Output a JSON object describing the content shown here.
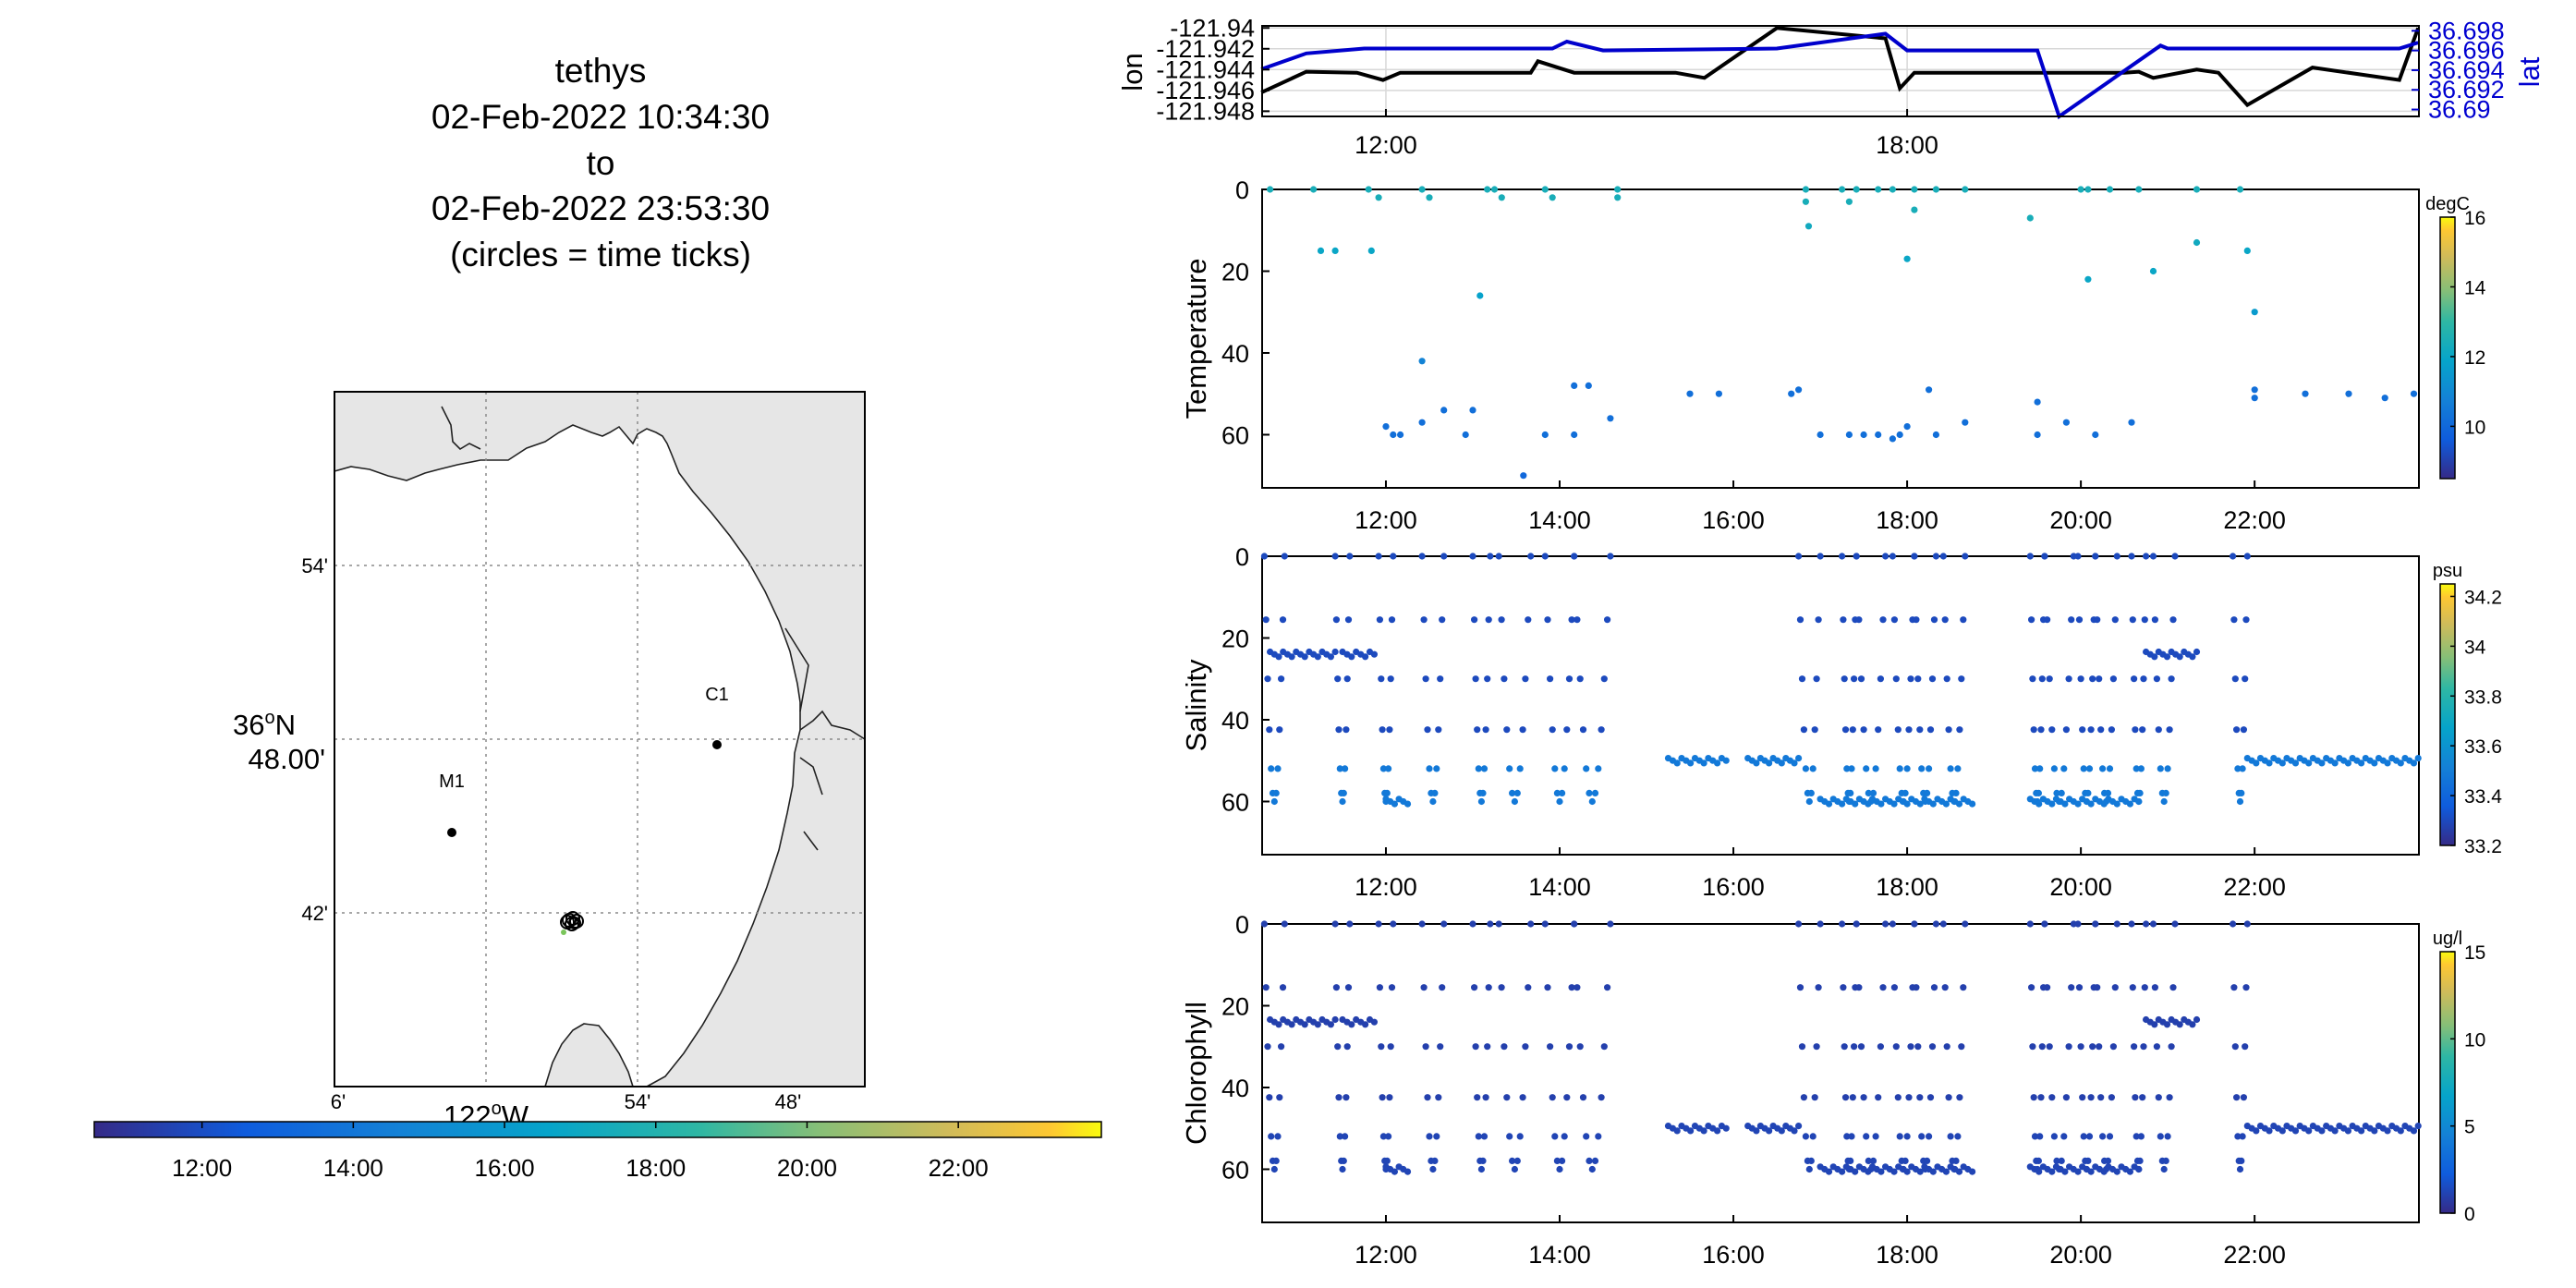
{
  "title": {
    "line1": "tethys",
    "line2": "02-Feb-2022 10:34:30",
    "line3": "to",
    "line4": "02-Feb-2022 23:53:30",
    "line5": "(circles = time ticks)"
  },
  "map": {
    "lat_tick_labels": [
      "54'",
      "36°N 48.00'",
      "42'"
    ],
    "lat_label_main": "36",
    "lat_label_sup": "o",
    "lat_label_suffix": "N",
    "lat_label_minutes": "48.00'",
    "lat_54": "54'",
    "lat_42": "42'",
    "lon_6": "6'",
    "lon_54": "54'",
    "lon_48": "48'",
    "lon_label_main": "122",
    "lon_label_sup": "o",
    "lon_label_suffix": "W",
    "mooring_c1": "C1",
    "mooring_m1": "M1",
    "land_color": "#e6e6e6",
    "ocean_color": "#ffffff"
  },
  "time_colorbar": {
    "ticks": [
      "12:00",
      "14:00",
      "16:00",
      "18:00",
      "20:00",
      "22:00"
    ]
  },
  "chart_data": [
    {
      "type": "line",
      "name": "position",
      "ylabel": "lon",
      "ylabel_right": "lat",
      "x_ticks": [
        "12:00",
        "18:00"
      ],
      "xlim": [
        "10:34:30",
        "23:53:30"
      ],
      "ylim_left": [
        -121.9485,
        -121.9398
      ],
      "ylim_right": [
        36.6893,
        36.6985
      ],
      "yticks_left": [
        "-121.94",
        "-121.942",
        "-121.944",
        "-121.946",
        "-121.948"
      ],
      "yticks_right": [
        "36.698",
        "36.696",
        "36.694",
        "36.692",
        "36.69"
      ],
      "series": [
        {
          "name": "lon",
          "color": "#000000",
          "x": [
            "10:34",
            "11:05",
            "11:40",
            "11:58",
            "12:10",
            "13:40",
            "13:45",
            "14:10",
            "15:20",
            "15:40",
            "16:30",
            "17:45",
            "17:55",
            "18:05",
            "19:30",
            "20:30",
            "20:40",
            "20:50",
            "21:20",
            "21:35",
            "21:55",
            "22:40",
            "23:40",
            "23:53"
          ],
          "y": [
            -121.9462,
            -121.9442,
            -121.9443,
            -121.945,
            -121.9443,
            -121.9443,
            -121.9432,
            -121.9443,
            -121.9443,
            -121.9448,
            -121.94,
            -121.941,
            -121.9458,
            -121.9443,
            -121.9443,
            -121.9443,
            -121.9442,
            -121.9448,
            -121.944,
            -121.9443,
            -121.9474,
            -121.9438,
            -121.945,
            -121.94
          ]
        },
        {
          "name": "lat",
          "color": "#0000cc",
          "x": [
            "10:34",
            "11:05",
            "11:45",
            "13:00",
            "13:55",
            "14:05",
            "14:30",
            "16:30",
            "17:45",
            "18:00",
            "18:40",
            "19:30",
            "19:45",
            "20:55",
            "21:00",
            "21:15",
            "22:45",
            "23:40",
            "23:53"
          ],
          "y": [
            36.6941,
            36.6957,
            36.6962,
            36.6962,
            36.6962,
            36.6969,
            36.696,
            36.6962,
            36.6977,
            36.696,
            36.696,
            36.696,
            36.6893,
            36.6965,
            36.6962,
            36.6962,
            36.6962,
            36.6962,
            36.6968
          ]
        }
      ]
    },
    {
      "type": "scatter",
      "name": "temperature",
      "ylabel": "Temperature",
      "x_ticks": [
        "12:00",
        "14:00",
        "16:00",
        "18:00",
        "20:00",
        "22:00"
      ],
      "ylim": [
        0,
        73
      ],
      "yticks": [
        "0",
        "20",
        "40",
        "60"
      ],
      "y_reversed": true,
      "colorbar": {
        "unit": "degC",
        "range": [
          8.5,
          16
        ],
        "ticks": [
          "16",
          "14",
          "12",
          "10"
        ]
      },
      "points": [
        {
          "x": "10:40",
          "y": 0,
          "v": 12.4
        },
        {
          "x": "11:10",
          "y": 0,
          "v": 12.4
        },
        {
          "x": "11:15",
          "y": 15,
          "v": 12.0
        },
        {
          "x": "11:25",
          "y": 15,
          "v": 12.0
        },
        {
          "x": "11:50",
          "y": 15,
          "v": 12.0
        },
        {
          "x": "11:48",
          "y": 0,
          "v": 12.4
        },
        {
          "x": "11:55",
          "y": 2,
          "v": 12.4
        },
        {
          "x": "12:25",
          "y": 0,
          "v": 12.4
        },
        {
          "x": "12:30",
          "y": 2,
          "v": 12.4
        },
        {
          "x": "13:10",
          "y": 0,
          "v": 12.4
        },
        {
          "x": "13:15",
          "y": 0,
          "v": 12.4
        },
        {
          "x": "13:20",
          "y": 2,
          "v": 12.4
        },
        {
          "x": "13:50",
          "y": 0,
          "v": 12.4
        },
        {
          "x": "13:55",
          "y": 2,
          "v": 12.4
        },
        {
          "x": "14:40",
          "y": 0,
          "v": 12.4
        },
        {
          "x": "14:40",
          "y": 2,
          "v": 12.4
        },
        {
          "x": "13:05",
          "y": 26,
          "v": 11.8
        },
        {
          "x": "12:25",
          "y": 42,
          "v": 10.8
        },
        {
          "x": "12:00",
          "y": 58,
          "v": 10.2
        },
        {
          "x": "12:05",
          "y": 60,
          "v": 10.2
        },
        {
          "x": "12:10",
          "y": 60,
          "v": 10.2
        },
        {
          "x": "12:25",
          "y": 57,
          "v": 10.2
        },
        {
          "x": "12:40",
          "y": 54,
          "v": 10.2
        },
        {
          "x": "13:00",
          "y": 54,
          "v": 10.2
        },
        {
          "x": "12:55",
          "y": 60,
          "v": 10.2
        },
        {
          "x": "13:35",
          "y": 70,
          "v": 10.0
        },
        {
          "x": "13:50",
          "y": 60,
          "v": 10.2
        },
        {
          "x": "14:10",
          "y": 60,
          "v": 10.2
        },
        {
          "x": "14:10",
          "y": 48,
          "v": 10.2
        },
        {
          "x": "14:20",
          "y": 48,
          "v": 10.2
        },
        {
          "x": "14:35",
          "y": 56,
          "v": 10.2
        },
        {
          "x": "15:30",
          "y": 50,
          "v": 10.2
        },
        {
          "x": "15:50",
          "y": 50,
          "v": 10.2
        },
        {
          "x": "16:40",
          "y": 50,
          "v": 10.2
        },
        {
          "x": "16:45",
          "y": 49,
          "v": 10.2
        },
        {
          "x": "16:50",
          "y": 0,
          "v": 12.4
        },
        {
          "x": "16:50",
          "y": 3,
          "v": 12.4
        },
        {
          "x": "16:52",
          "y": 9,
          "v": 12.2
        },
        {
          "x": "17:15",
          "y": 0,
          "v": 12.4
        },
        {
          "x": "17:20",
          "y": 3,
          "v": 12.4
        },
        {
          "x": "17:25",
          "y": 0,
          "v": 12.4
        },
        {
          "x": "17:40",
          "y": 0,
          "v": 12.4
        },
        {
          "x": "17:50",
          "y": 0,
          "v": 12.4
        },
        {
          "x": "18:05",
          "y": 0,
          "v": 12.4
        },
        {
          "x": "18:05",
          "y": 5,
          "v": 12.4
        },
        {
          "x": "18:00",
          "y": 17,
          "v": 12.0
        },
        {
          "x": "18:20",
          "y": 0,
          "v": 12.4
        },
        {
          "x": "18:40",
          "y": 0,
          "v": 12.4
        },
        {
          "x": "17:00",
          "y": 60,
          "v": 10.2
        },
        {
          "x": "17:20",
          "y": 60,
          "v": 10.2
        },
        {
          "x": "17:30",
          "y": 60,
          "v": 10.2
        },
        {
          "x": "17:40",
          "y": 60,
          "v": 10.2
        },
        {
          "x": "17:50",
          "y": 61,
          "v": 10.2
        },
        {
          "x": "17:55",
          "y": 60,
          "v": 10.2
        },
        {
          "x": "18:00",
          "y": 58,
          "v": 10.2
        },
        {
          "x": "18:15",
          "y": 49,
          "v": 10.2
        },
        {
          "x": "18:20",
          "y": 60,
          "v": 10.2
        },
        {
          "x": "18:40",
          "y": 57,
          "v": 10.2
        },
        {
          "x": "19:25",
          "y": 7,
          "v": 12.4
        },
        {
          "x": "19:30",
          "y": 52,
          "v": 10.2
        },
        {
          "x": "19:30",
          "y": 60,
          "v": 10.2
        },
        {
          "x": "19:50",
          "y": 57,
          "v": 10.2
        },
        {
          "x": "20:00",
          "y": 0,
          "v": 12.4
        },
        {
          "x": "20:05",
          "y": 0,
          "v": 12.4
        },
        {
          "x": "20:05",
          "y": 22,
          "v": 12.0
        },
        {
          "x": "20:10",
          "y": 60,
          "v": 10.2
        },
        {
          "x": "20:35",
          "y": 57,
          "v": 10.2
        },
        {
          "x": "20:20",
          "y": 0,
          "v": 12.4
        },
        {
          "x": "20:40",
          "y": 0,
          "v": 12.4
        },
        {
          "x": "20:50",
          "y": 20,
          "v": 12.0
        },
        {
          "x": "21:20",
          "y": 0,
          "v": 12.4
        },
        {
          "x": "21:20",
          "y": 13,
          "v": 12.2
        },
        {
          "x": "21:50",
          "y": 0,
          "v": 12.4
        },
        {
          "x": "21:55",
          "y": 15,
          "v": 12.0
        },
        {
          "x": "22:00",
          "y": 30,
          "v": 11.6
        },
        {
          "x": "22:00",
          "y": 49,
          "v": 10.2
        },
        {
          "x": "22:00",
          "y": 51,
          "v": 10.2
        },
        {
          "x": "22:35",
          "y": 50,
          "v": 10.2
        },
        {
          "x": "23:05",
          "y": 50,
          "v": 10.2
        },
        {
          "x": "23:30",
          "y": 51,
          "v": 10.2
        },
        {
          "x": "23:50",
          "y": 50,
          "v": 10.2
        }
      ]
    },
    {
      "type": "scatter",
      "name": "salinity",
      "ylabel": "Salinity",
      "x_ticks": [
        "12:00",
        "14:00",
        "16:00",
        "18:00",
        "20:00",
        "22:00"
      ],
      "ylim": [
        0,
        73
      ],
      "yticks": [
        "0",
        "20",
        "40",
        "60"
      ],
      "y_reversed": true,
      "colorbar": {
        "unit": "psu",
        "range": [
          33.2,
          34.25
        ],
        "ticks": [
          "34.2",
          "34",
          "33.8",
          "33.6",
          "33.4",
          "33.2"
        ]
      },
      "points_hint": "profiles 0-60 m, deep samples ~33.45 psu, shallow ~33.3 psu"
    },
    {
      "type": "scatter",
      "name": "chlorophyll",
      "ylabel": "Chlorophyll",
      "x_ticks": [
        "12:00",
        "14:00",
        "16:00",
        "18:00",
        "20:00",
        "22:00"
      ],
      "ylim": [
        0,
        73
      ],
      "yticks": [
        "0",
        "20",
        "40",
        "60"
      ],
      "y_reversed": true,
      "colorbar": {
        "unit": "ug/l",
        "range": [
          0,
          15
        ],
        "ticks": [
          "15",
          "10",
          "5",
          "0"
        ]
      },
      "points_hint": "profiles 0-60 m, values ~1 ug/l"
    }
  ],
  "profile_casts": {
    "note": "",
    "up_down": [
      [
        "10:36",
        "10:50"
      ],
      [
        "11:25",
        "11:35"
      ],
      [
        "11:55",
        "12:05"
      ],
      [
        "12:25",
        "12:40"
      ],
      [
        "13:00",
        "13:12"
      ],
      [
        "13:18",
        "13:40"
      ],
      [
        "13:50",
        "14:10"
      ],
      [
        "14:10",
        "14:35"
      ],
      [
        "16:45",
        "17:00"
      ],
      [
        "17:15",
        "17:25"
      ],
      [
        "17:25",
        "17:45"
      ],
      [
        "17:50",
        "18:05"
      ],
      [
        "18:05",
        "18:20"
      ],
      [
        "18:25",
        "18:40"
      ],
      [
        "19:25",
        "19:35"
      ],
      [
        "19:35",
        "19:55"
      ],
      [
        "19:58",
        "20:10"
      ],
      [
        "20:10",
        "20:25"
      ],
      [
        "20:35",
        "20:45"
      ],
      [
        "20:50",
        "21:05"
      ],
      [
        "21:45",
        "21:55"
      ]
    ],
    "level": [
      [
        "10:40",
        "11:25",
        24
      ],
      [
        "11:30",
        "11:52",
        24
      ],
      [
        "12:00",
        "12:15",
        60
      ],
      [
        "15:15",
        "15:55",
        50
      ],
      [
        "16:10",
        "16:45",
        50
      ],
      [
        "17:00",
        "18:45",
        60
      ],
      [
        "19:25",
        "20:40",
        60
      ],
      [
        "20:45",
        "21:20",
        24
      ],
      [
        "21:55",
        "23:53",
        50
      ]
    ]
  }
}
